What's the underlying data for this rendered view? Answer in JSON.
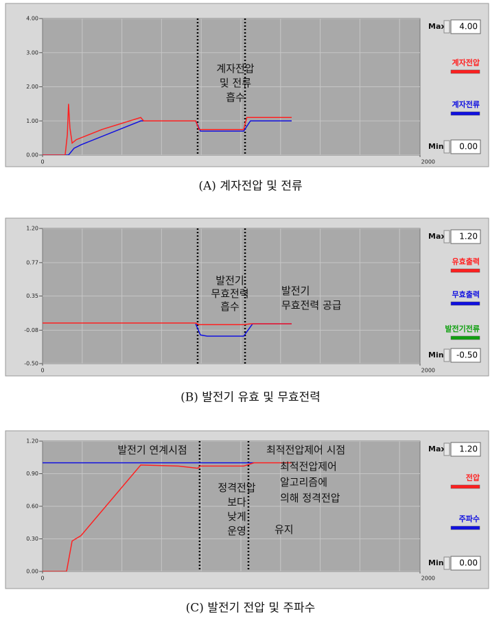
{
  "controls": {
    "max": "Max",
    "min": "Min"
  },
  "chart_data": [
    {
      "type": "line",
      "caption": "(A) 계자전압 및 전류",
      "xlim": [
        0,
        2000
      ],
      "xticks": [
        0,
        2000
      ],
      "xgrid": [
        200,
        400,
        600,
        800,
        1000,
        1200,
        1400,
        1600,
        1800
      ],
      "ylim": [
        0,
        4
      ],
      "yticks": [
        {
          "value": 0,
          "label": "0.00"
        },
        {
          "value": 1,
          "label": "1.00"
        },
        {
          "value": 2,
          "label": "2.00"
        },
        {
          "value": 3,
          "label": "3.00"
        },
        {
          "value": 4,
          "label": "4.00"
        }
      ],
      "grid": true,
      "events": [
        782,
        1021
      ],
      "series": [
        {
          "name": "계자전압",
          "color": "#ff2020",
          "x": [
            0,
            114,
            125,
            131,
            138,
            149,
            170,
            300,
            495,
            510,
            772,
            789,
            1014,
            1030,
            1256
          ],
          "values": [
            0,
            0,
            0.6,
            1.5,
            0.8,
            0.35,
            0.45,
            0.75,
            1.1,
            1.0,
            1.0,
            0.75,
            0.75,
            1.1,
            1.1
          ]
        },
        {
          "name": "계자전류",
          "color": "#1010e0",
          "x": [
            0,
            131,
            159,
            194,
            495,
            772,
            796,
            1014,
            1048,
            1256
          ],
          "values": [
            0,
            0,
            0.2,
            0.3,
            1.0,
            1.0,
            0.7,
            0.7,
            1.0,
            1.0
          ]
        }
      ],
      "annotations": [
        [
          "계자전압",
          "및 전류",
          "흡수"
        ]
      ]
    },
    {
      "type": "line",
      "caption": "(B) 발전기 유효 및 무효전력",
      "xlim": [
        0,
        2000
      ],
      "xticks": [
        0,
        2000
      ],
      "xgrid": [
        200,
        400,
        600,
        800,
        1000,
        1200,
        1400,
        1600,
        1800
      ],
      "ylim": [
        -0.5,
        1.2
      ],
      "yticks": [
        {
          "value": -0.5,
          "label": "-0.50"
        },
        {
          "value": -0.08,
          "label": "-0.08"
        },
        {
          "value": 0.35,
          "label": "0.35"
        },
        {
          "value": 0.77,
          "label": "0.77"
        },
        {
          "value": 1.2,
          "label": "1.20"
        }
      ],
      "grid": true,
      "events": [
        782,
        1021
      ],
      "series": [
        {
          "name": "유효출력",
          "color": "#ff2020",
          "x": [
            0,
            772,
            789,
            1014,
            1050,
            1256
          ],
          "values": [
            0.01,
            0.01,
            -0.01,
            -0.01,
            0.0,
            0.0
          ]
        },
        {
          "name": "무효출력",
          "color": "#1010e0",
          "x": [
            772,
            796,
            830,
            1014,
            1059,
            1256
          ],
          "values": [
            0.0,
            -0.14,
            -0.155,
            -0.155,
            0.0,
            0.0
          ]
        },
        {
          "name": "발전기전류",
          "color": "#10a010",
          "x": [],
          "values": []
        }
      ],
      "annotations": [
        [
          "발전기",
          "무효전력",
          "흡수"
        ],
        [
          "발전기",
          "무효전력 공급"
        ]
      ]
    },
    {
      "type": "line",
      "caption": "(C) 발전기 전압 및 주파수",
      "xlim": [
        0,
        2000
      ],
      "xticks": [
        0,
        2000
      ],
      "xgrid": [
        200,
        400,
        600,
        800,
        1000,
        1200,
        1400,
        1600,
        1800
      ],
      "ylim": [
        0,
        1.2
      ],
      "yticks": [
        {
          "value": 0,
          "label": "0.00"
        },
        {
          "value": 0.3,
          "label": "0.30"
        },
        {
          "value": 0.6,
          "label": "0.60"
        },
        {
          "value": 0.9,
          "label": "0.90"
        },
        {
          "value": 1.2,
          "label": "1.20"
        }
      ],
      "grid": true,
      "events": [
        792,
        1038
      ],
      "series": [
        {
          "name": "전압",
          "color": "#ff2020",
          "x": [
            0,
            121,
            149,
            194,
            495,
            685,
            782,
            796,
            1014,
            1066,
            1256
          ],
          "values": [
            0,
            0,
            0.28,
            0.33,
            0.98,
            0.97,
            0.95,
            0.97,
            0.97,
            1.0,
            1.0
          ]
        },
        {
          "name": "주파수",
          "color": "#1010e0",
          "x": [
            0,
            1066
          ],
          "values": [
            1.0,
            1.0
          ]
        }
      ],
      "annotations": [
        [
          "발전기 연계시점"
        ],
        [
          "최적전압제어 시점"
        ],
        [
          "최적전압제어",
          "알고리즘에",
          "의해 정격전압"
        ],
        [
          "정격전압",
          "보다",
          "낮게",
          "운영"
        ],
        [
          "유지"
        ]
      ]
    }
  ]
}
